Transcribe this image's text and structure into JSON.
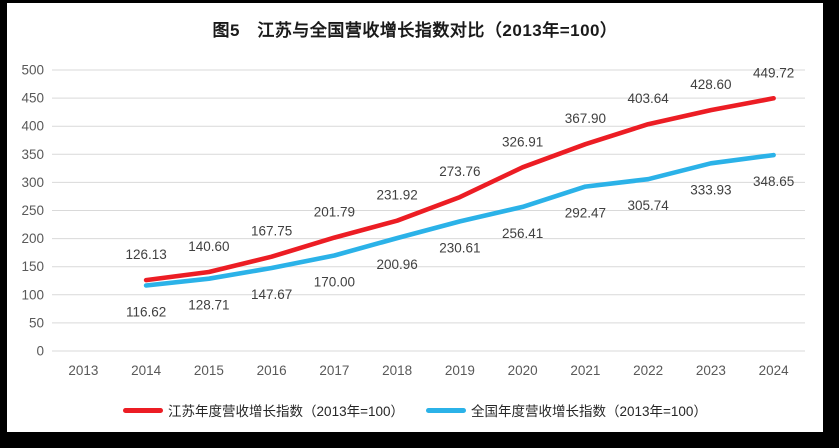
{
  "page": {
    "border_color": "#000000",
    "canvas_color": "#ffffff"
  },
  "chart_data": {
    "type": "line",
    "title": "图5　江苏与全国营收增长指数对比（2013年=100）",
    "categories": [
      "2013",
      "2014",
      "2015",
      "2016",
      "2017",
      "2018",
      "2019",
      "2020",
      "2021",
      "2022",
      "2023",
      "2024"
    ],
    "series": [
      {
        "name": "江苏年度营收增长指数（2013年=100）",
        "color": "#EC1D24",
        "label_position": "above",
        "values": [
          null,
          126.13,
          140.6,
          167.75,
          201.79,
          231.92,
          273.76,
          326.91,
          367.9,
          403.64,
          428.6,
          449.72
        ]
      },
      {
        "name": "全国年度营收增长指数（2013年=100）",
        "color": "#2BB2E8",
        "label_position": "below",
        "values": [
          null,
          116.62,
          128.71,
          147.67,
          170.0,
          200.96,
          230.61,
          256.41,
          292.47,
          305.74,
          333.93,
          348.65
        ]
      }
    ],
    "ylim": [
      0,
      500
    ],
    "ytick_step": 50,
    "grid": "horizontal",
    "legend_position": "bottom",
    "colors": {
      "grid": "#D9D9D9",
      "axis_text": "#595959",
      "data_label": "#404040"
    }
  }
}
